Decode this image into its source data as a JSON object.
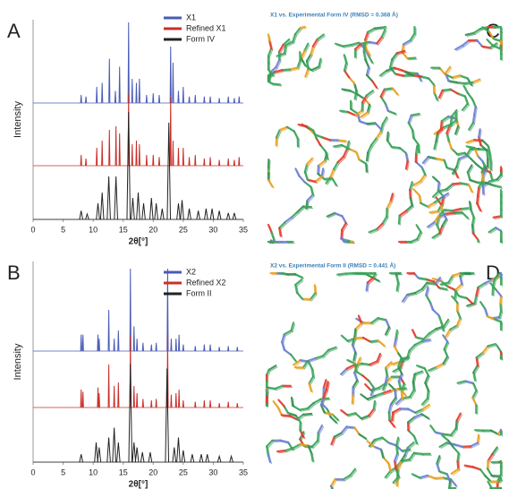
{
  "chart_data": [
    {
      "type": "peaks",
      "panel_label": "A",
      "xlabel": "2θ[°]",
      "ylabel": "Intensity",
      "xlim": [
        0,
        35
      ],
      "xticks": [
        0,
        5,
        10,
        15,
        20,
        25,
        30,
        35
      ],
      "legend": "upper right",
      "series": [
        {
          "name": "X1",
          "color": "#4a5bb5",
          "x": [
            8.0,
            8.8,
            10.6,
            11.5,
            12.7,
            13.7,
            14.4,
            15.9,
            16.5,
            17.2,
            17.7,
            18.9,
            20.0,
            21.0,
            22.9,
            23.3,
            24.2,
            25.0,
            26.0,
            27.0,
            28.5,
            29.5,
            31.0,
            32.5,
            33.5,
            34.3
          ],
          "values": [
            10,
            8,
            20,
            25,
            55,
            15,
            45,
            100,
            30,
            25,
            30,
            10,
            12,
            10,
            70,
            50,
            15,
            20,
            8,
            10,
            8,
            8,
            6,
            8,
            6,
            8
          ]
        },
        {
          "name": "Refined X1",
          "color": "#c8302a",
          "x": [
            8.0,
            8.8,
            10.6,
            11.5,
            12.7,
            13.8,
            14.4,
            15.9,
            16.5,
            17.2,
            17.7,
            18.9,
            20.0,
            21.0,
            22.9,
            23.3,
            24.2,
            25.0,
            26.0,
            27.0,
            28.5,
            29.5,
            31.0,
            32.5,
            33.5,
            34.3
          ],
          "values": [
            15,
            10,
            25,
            35,
            50,
            55,
            45,
            100,
            30,
            35,
            30,
            15,
            15,
            12,
            95,
            35,
            25,
            25,
            12,
            15,
            10,
            12,
            8,
            10,
            8,
            12
          ]
        },
        {
          "name": "Form IV",
          "color": "#222222",
          "x": [
            8.0,
            9.0,
            10.8,
            11.5,
            12.6,
            13.8,
            15.9,
            16.6,
            17.5,
            18.4,
            19.7,
            20.5,
            21.5,
            22.6,
            24.2,
            24.8,
            26.0,
            27.5,
            28.8,
            29.8,
            31.0,
            32.5,
            33.5
          ],
          "values": [
            8,
            5,
            15,
            25,
            40,
            40,
            100,
            20,
            25,
            15,
            20,
            15,
            10,
            90,
            15,
            18,
            10,
            8,
            10,
            10,
            8,
            6,
            6
          ]
        }
      ]
    },
    {
      "type": "peaks",
      "panel_label": "B",
      "xlabel": "2θ[°]",
      "ylabel": "Intensity",
      "xlim": [
        0,
        35
      ],
      "xticks": [
        0,
        5,
        10,
        15,
        20,
        25,
        30,
        35
      ],
      "legend": "upper right",
      "series": [
        {
          "name": "X2",
          "color": "#4a5bb5",
          "x": [
            8.0,
            8.3,
            10.8,
            11.0,
            12.6,
            13.5,
            14.2,
            16.2,
            16.8,
            17.3,
            18.3,
            19.7,
            20.5,
            22.4,
            23.0,
            23.8,
            24.3,
            25.0,
            27.0,
            28.5,
            29.5,
            31.0,
            32.5,
            34.0
          ],
          "values": [
            20,
            20,
            20,
            15,
            50,
            15,
            25,
            100,
            30,
            15,
            10,
            8,
            10,
            100,
            15,
            15,
            20,
            8,
            6,
            8,
            8,
            5,
            6,
            5
          ]
        },
        {
          "name": "Refined X2",
          "color": "#c8302a",
          "x": [
            8.0,
            8.3,
            10.8,
            11.0,
            12.6,
            13.5,
            14.2,
            16.2,
            16.8,
            17.3,
            18.3,
            19.7,
            20.5,
            22.4,
            23.0,
            23.8,
            24.3,
            25.0,
            27.0,
            28.5,
            29.5,
            31.0,
            32.5,
            34.0
          ],
          "values": [
            25,
            22,
            28,
            20,
            60,
            30,
            35,
            100,
            30,
            20,
            12,
            10,
            12,
            100,
            18,
            20,
            25,
            10,
            8,
            10,
            10,
            6,
            8,
            6
          ]
        },
        {
          "name": "Form II",
          "color": "#222222",
          "x": [
            8.0,
            10.5,
            11.0,
            12.6,
            13.5,
            14.2,
            16.2,
            16.8,
            17.3,
            18.2,
            19.5,
            22.3,
            23.5,
            24.2,
            25.0,
            26.5,
            28.0,
            29.0,
            31.0,
            33.0
          ],
          "values": [
            8,
            20,
            15,
            25,
            35,
            20,
            100,
            20,
            15,
            10,
            10,
            95,
            15,
            25,
            12,
            8,
            8,
            8,
            6,
            6
          ]
        }
      ]
    }
  ],
  "structures": [
    {
      "label": "C",
      "title": "X1 vs. Experimental Form IV (RMSD = 0.368 Å)"
    },
    {
      "label": "D",
      "title": "X2 vs. Experimental Form II (RMSD = 0.441 Å)"
    }
  ]
}
